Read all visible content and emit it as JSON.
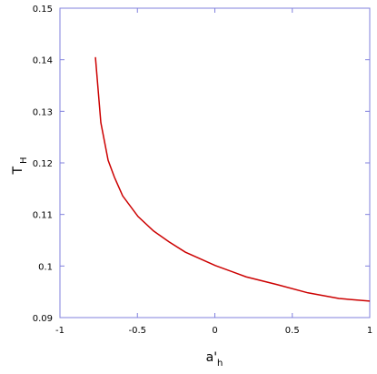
{
  "chart_data": {
    "type": "line",
    "x_label": "a'",
    "x_label_sub": "h",
    "y_label": "T",
    "y_label_sub": "H",
    "x": [
      -0.771,
      -0.736,
      -0.689,
      -0.648,
      -0.595,
      -0.496,
      -0.396,
      -0.296,
      -0.191,
      0.003,
      0.202,
      0.402,
      0.601,
      0.801,
      1.0
    ],
    "series": [
      {
        "color": "#cc0000",
        "values": [
          0.1405,
          0.1278,
          0.1205,
          0.1172,
          0.1136,
          0.1096,
          0.1068,
          0.1047,
          0.1027,
          0.1001,
          0.0979,
          0.0964,
          0.0948,
          0.0937,
          0.0932
        ]
      }
    ],
    "xlim": [
      -1,
      1
    ],
    "xticks": [
      -1,
      -0.5,
      0,
      0.5,
      1
    ],
    "ylim": [
      0.09,
      0.15
    ],
    "yticks": [
      0.09,
      0.1,
      0.11,
      0.12,
      0.13,
      0.14,
      0.15
    ],
    "frame_color": "#8080dd"
  }
}
